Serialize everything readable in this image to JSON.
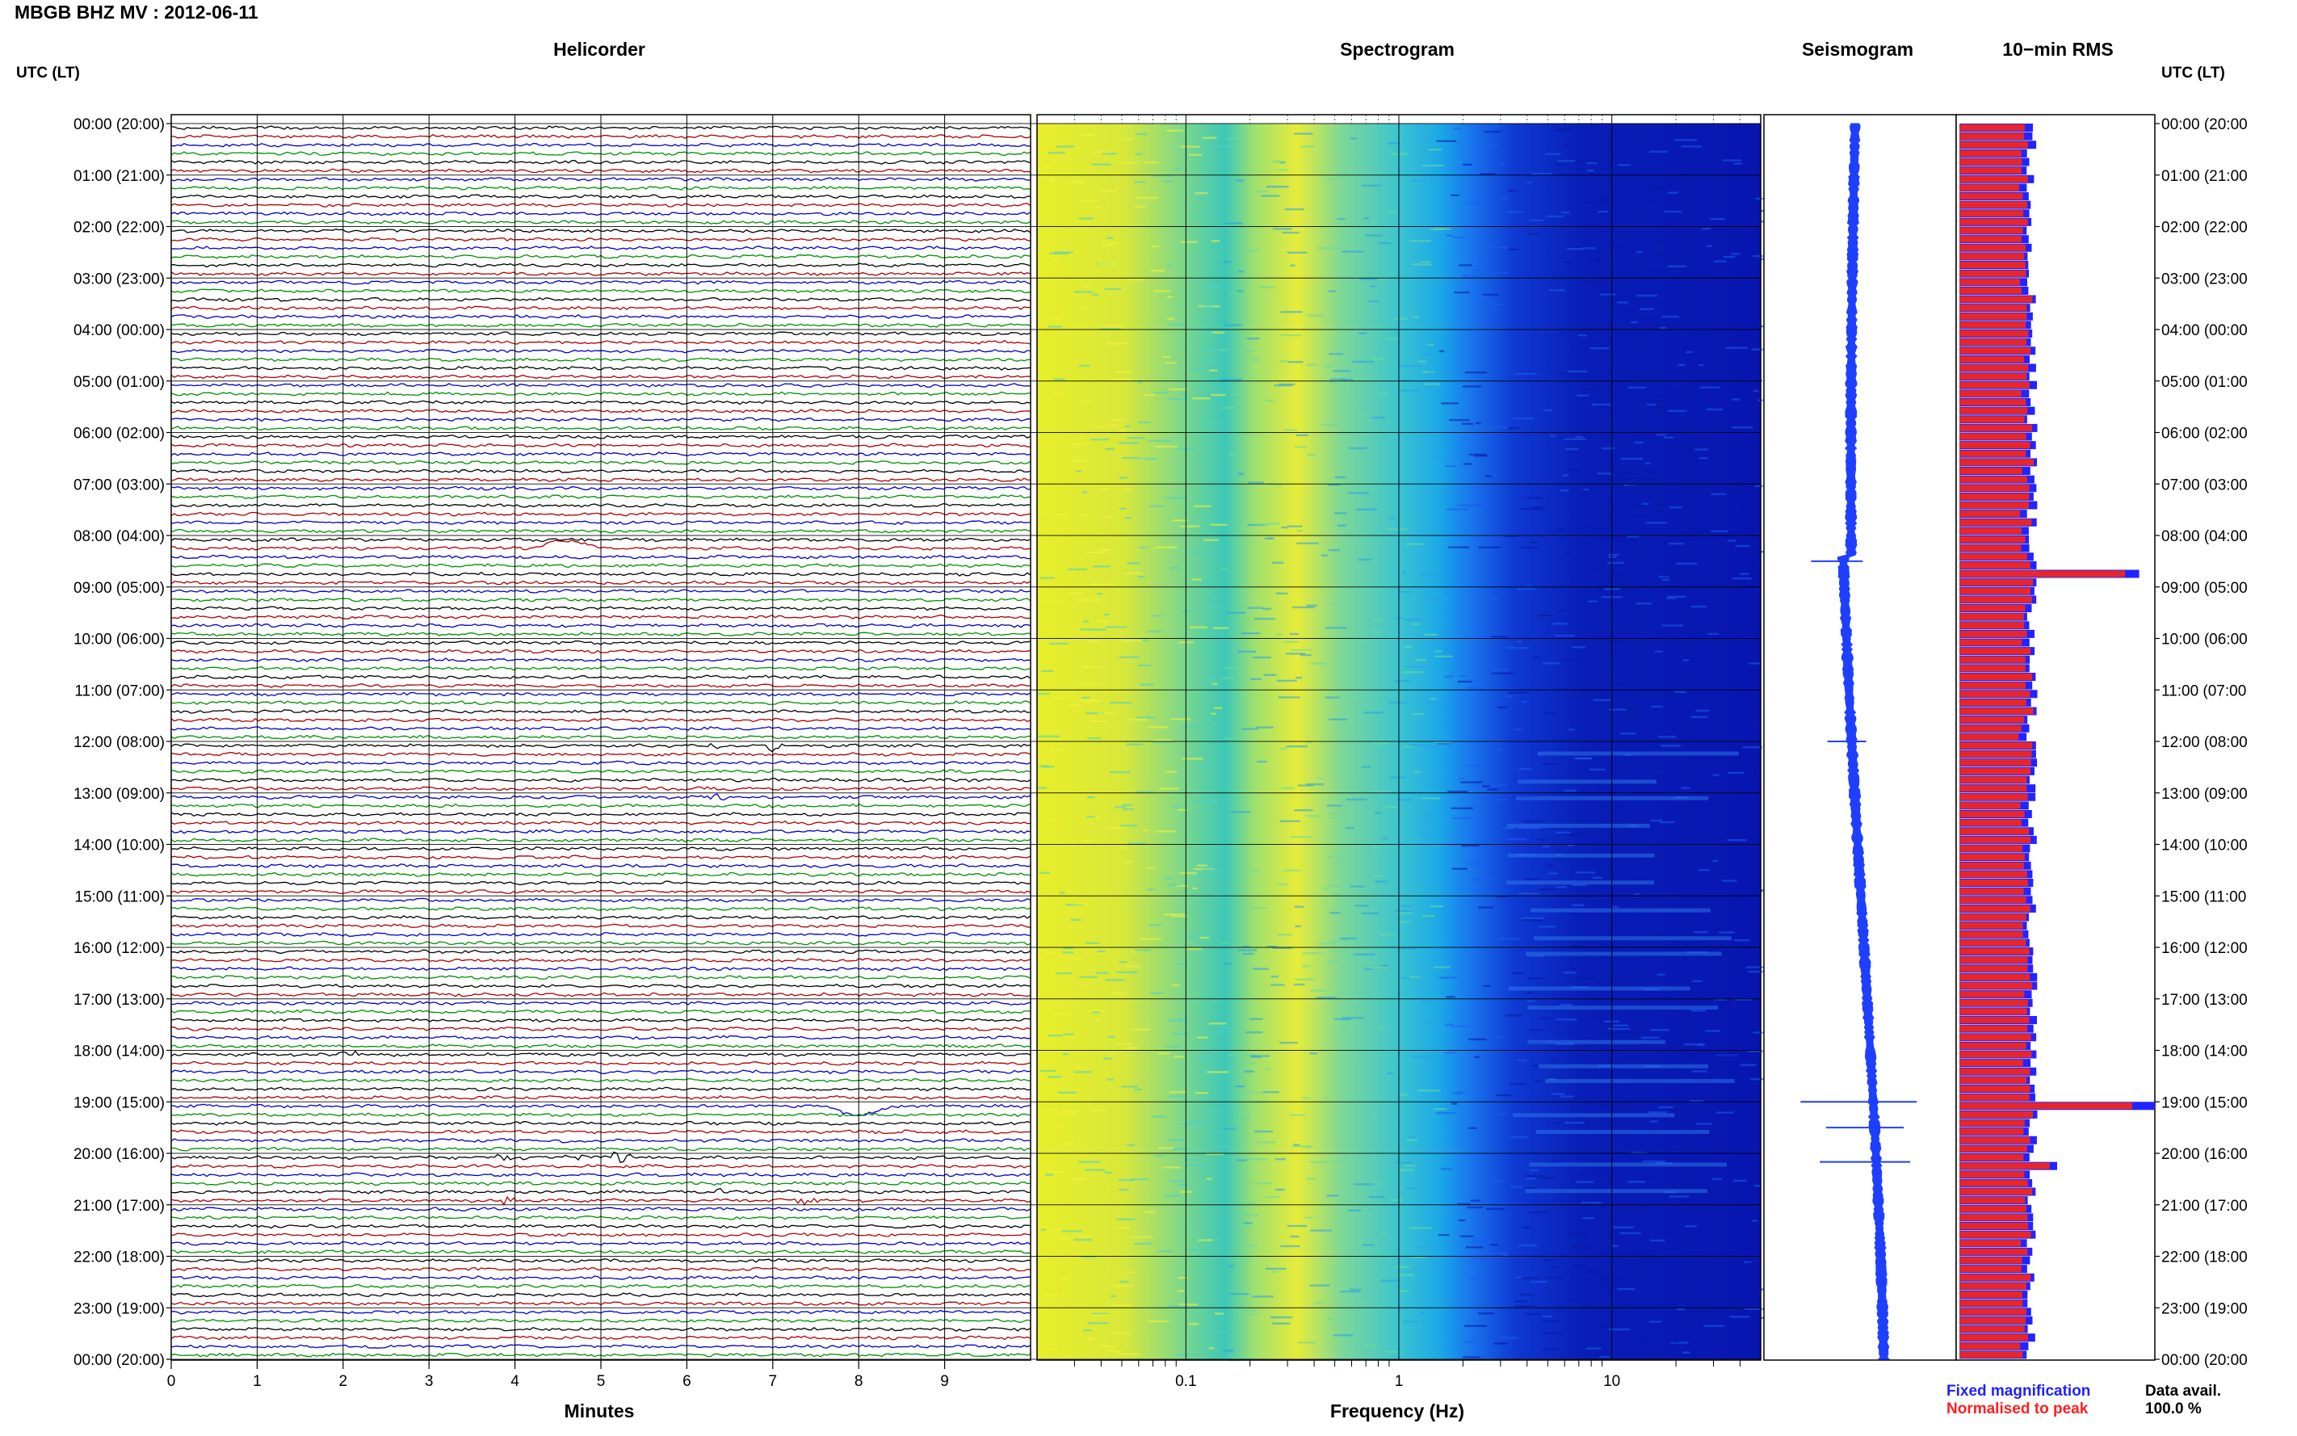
{
  "page_title": "MBGB BHZ MV : 2012-06-11",
  "panels": {
    "helicorder": "Helicorder",
    "spectrogram": "Spectrogram",
    "seismogram": "Seismogram",
    "rms": "10−min RMS"
  },
  "axis_left_title": "UTC (LT)",
  "axis_right_title": "UTC (LT)",
  "time_labels": [
    "00:00 (20:00)",
    "01:00 (21:00)",
    "02:00 (22:00)",
    "03:00 (23:00)",
    "04:00 (00:00)",
    "05:00 (01:00)",
    "06:00 (02:00)",
    "07:00 (03:00)",
    "08:00 (04:00)",
    "09:00 (05:00)",
    "10:00 (06:00)",
    "11:00 (07:00)",
    "12:00 (08:00)",
    "13:00 (09:00)",
    "14:00 (10:00)",
    "15:00 (11:00)",
    "16:00 (12:00)",
    "17:00 (13:00)",
    "18:00 (14:00)",
    "19:00 (15:00)",
    "20:00 (16:00)",
    "21:00 (17:00)",
    "22:00 (18:00)",
    "23:00 (19:00)",
    "00:00 (20:00)"
  ],
  "minute_ticks": [
    "0",
    "1",
    "2",
    "3",
    "4",
    "5",
    "6",
    "7",
    "8",
    "9"
  ],
  "x_label_minutes": "Minutes",
  "freq_ticks": [
    "0.1",
    "1",
    "10"
  ],
  "x_label_frequency": "Frequency (Hz)",
  "legend": {
    "fixed": "Fixed magnification",
    "fixed_color": "#1f1fff",
    "normalised": "Normalised to peak",
    "normalised_color": "#ff1f1f"
  },
  "data_avail": {
    "label": "Data avail.",
    "value": "100.0 %"
  },
  "colors": {
    "trace_cycle": [
      "#000000",
      "#b00000",
      "#0000c8",
      "#009000"
    ],
    "rms_fill": "#e8262a",
    "rms_edge": "#2323ff",
    "seismogram": "#1f3fff"
  },
  "chart_data": [
    {
      "type": "line",
      "title": "Helicorder",
      "xlabel": "Minutes",
      "xlim": [
        0,
        10
      ],
      "rows": 144,
      "row_minutes": 10,
      "events": [
        {
          "time_utc": "08:10",
          "minute": 4.6,
          "kind": "long-period pulse"
        },
        {
          "time_utc": "12:00",
          "minute": 7.0,
          "kind": "event"
        },
        {
          "time_utc": "12:00",
          "minute": 6.2,
          "kind": "event"
        },
        {
          "time_utc": "13:00",
          "minute": 6.3,
          "kind": "event"
        },
        {
          "time_utc": "18:00",
          "minute": 2.0,
          "kind": "event"
        },
        {
          "time_utc": "19:00",
          "minute": 8.0,
          "kind": "long-period pulse"
        },
        {
          "time_utc": "19:40",
          "minute": 4.5,
          "kind": "event"
        },
        {
          "time_utc": "20:00",
          "minute": 3.8,
          "kind": "event"
        },
        {
          "time_utc": "20:00",
          "minute": 4.6,
          "kind": "event"
        },
        {
          "time_utc": "20:00",
          "minute": 5.2,
          "kind": "event"
        },
        {
          "time_utc": "20:40",
          "minute": 6.3,
          "kind": "event"
        },
        {
          "time_utc": "20:50",
          "minute": 3.9,
          "kind": "event"
        },
        {
          "time_utc": "20:50",
          "minute": 7.3,
          "kind": "event"
        }
      ]
    },
    {
      "type": "heatmap",
      "title": "Spectrogram",
      "xlabel": "Frequency (Hz)",
      "x_scale": "log",
      "xlim": [
        0.02,
        50
      ],
      "x_ticks": [
        0.1,
        1,
        10
      ],
      "ylim_hours": [
        0,
        24
      ],
      "colormap": "dark blue (low) → cyan → yellow (high)",
      "dominant_band_hz": [
        0.02,
        0.3
      ]
    },
    {
      "type": "line",
      "title": "Seismogram",
      "ylim_hours": [
        0,
        24
      ],
      "spikes_utc": [
        "08:30",
        "12:00",
        "19:00",
        "19:30",
        "20:10"
      ]
    },
    {
      "type": "bar",
      "title": "10−min RMS",
      "bins": 144,
      "orientation": "horizontal",
      "series": [
        {
          "name": "Fixed magnification",
          "color": "#1f1fff"
        },
        {
          "name": "Normalised to peak",
          "color": "#ff1f1f"
        }
      ],
      "typical_relative": 0.42,
      "peaks": [
        {
          "time_utc": "08:40",
          "relative": 0.92
        },
        {
          "time_utc": "19:00",
          "relative": 1.0
        },
        {
          "time_utc": "20:10",
          "relative": 0.5
        }
      ]
    }
  ]
}
